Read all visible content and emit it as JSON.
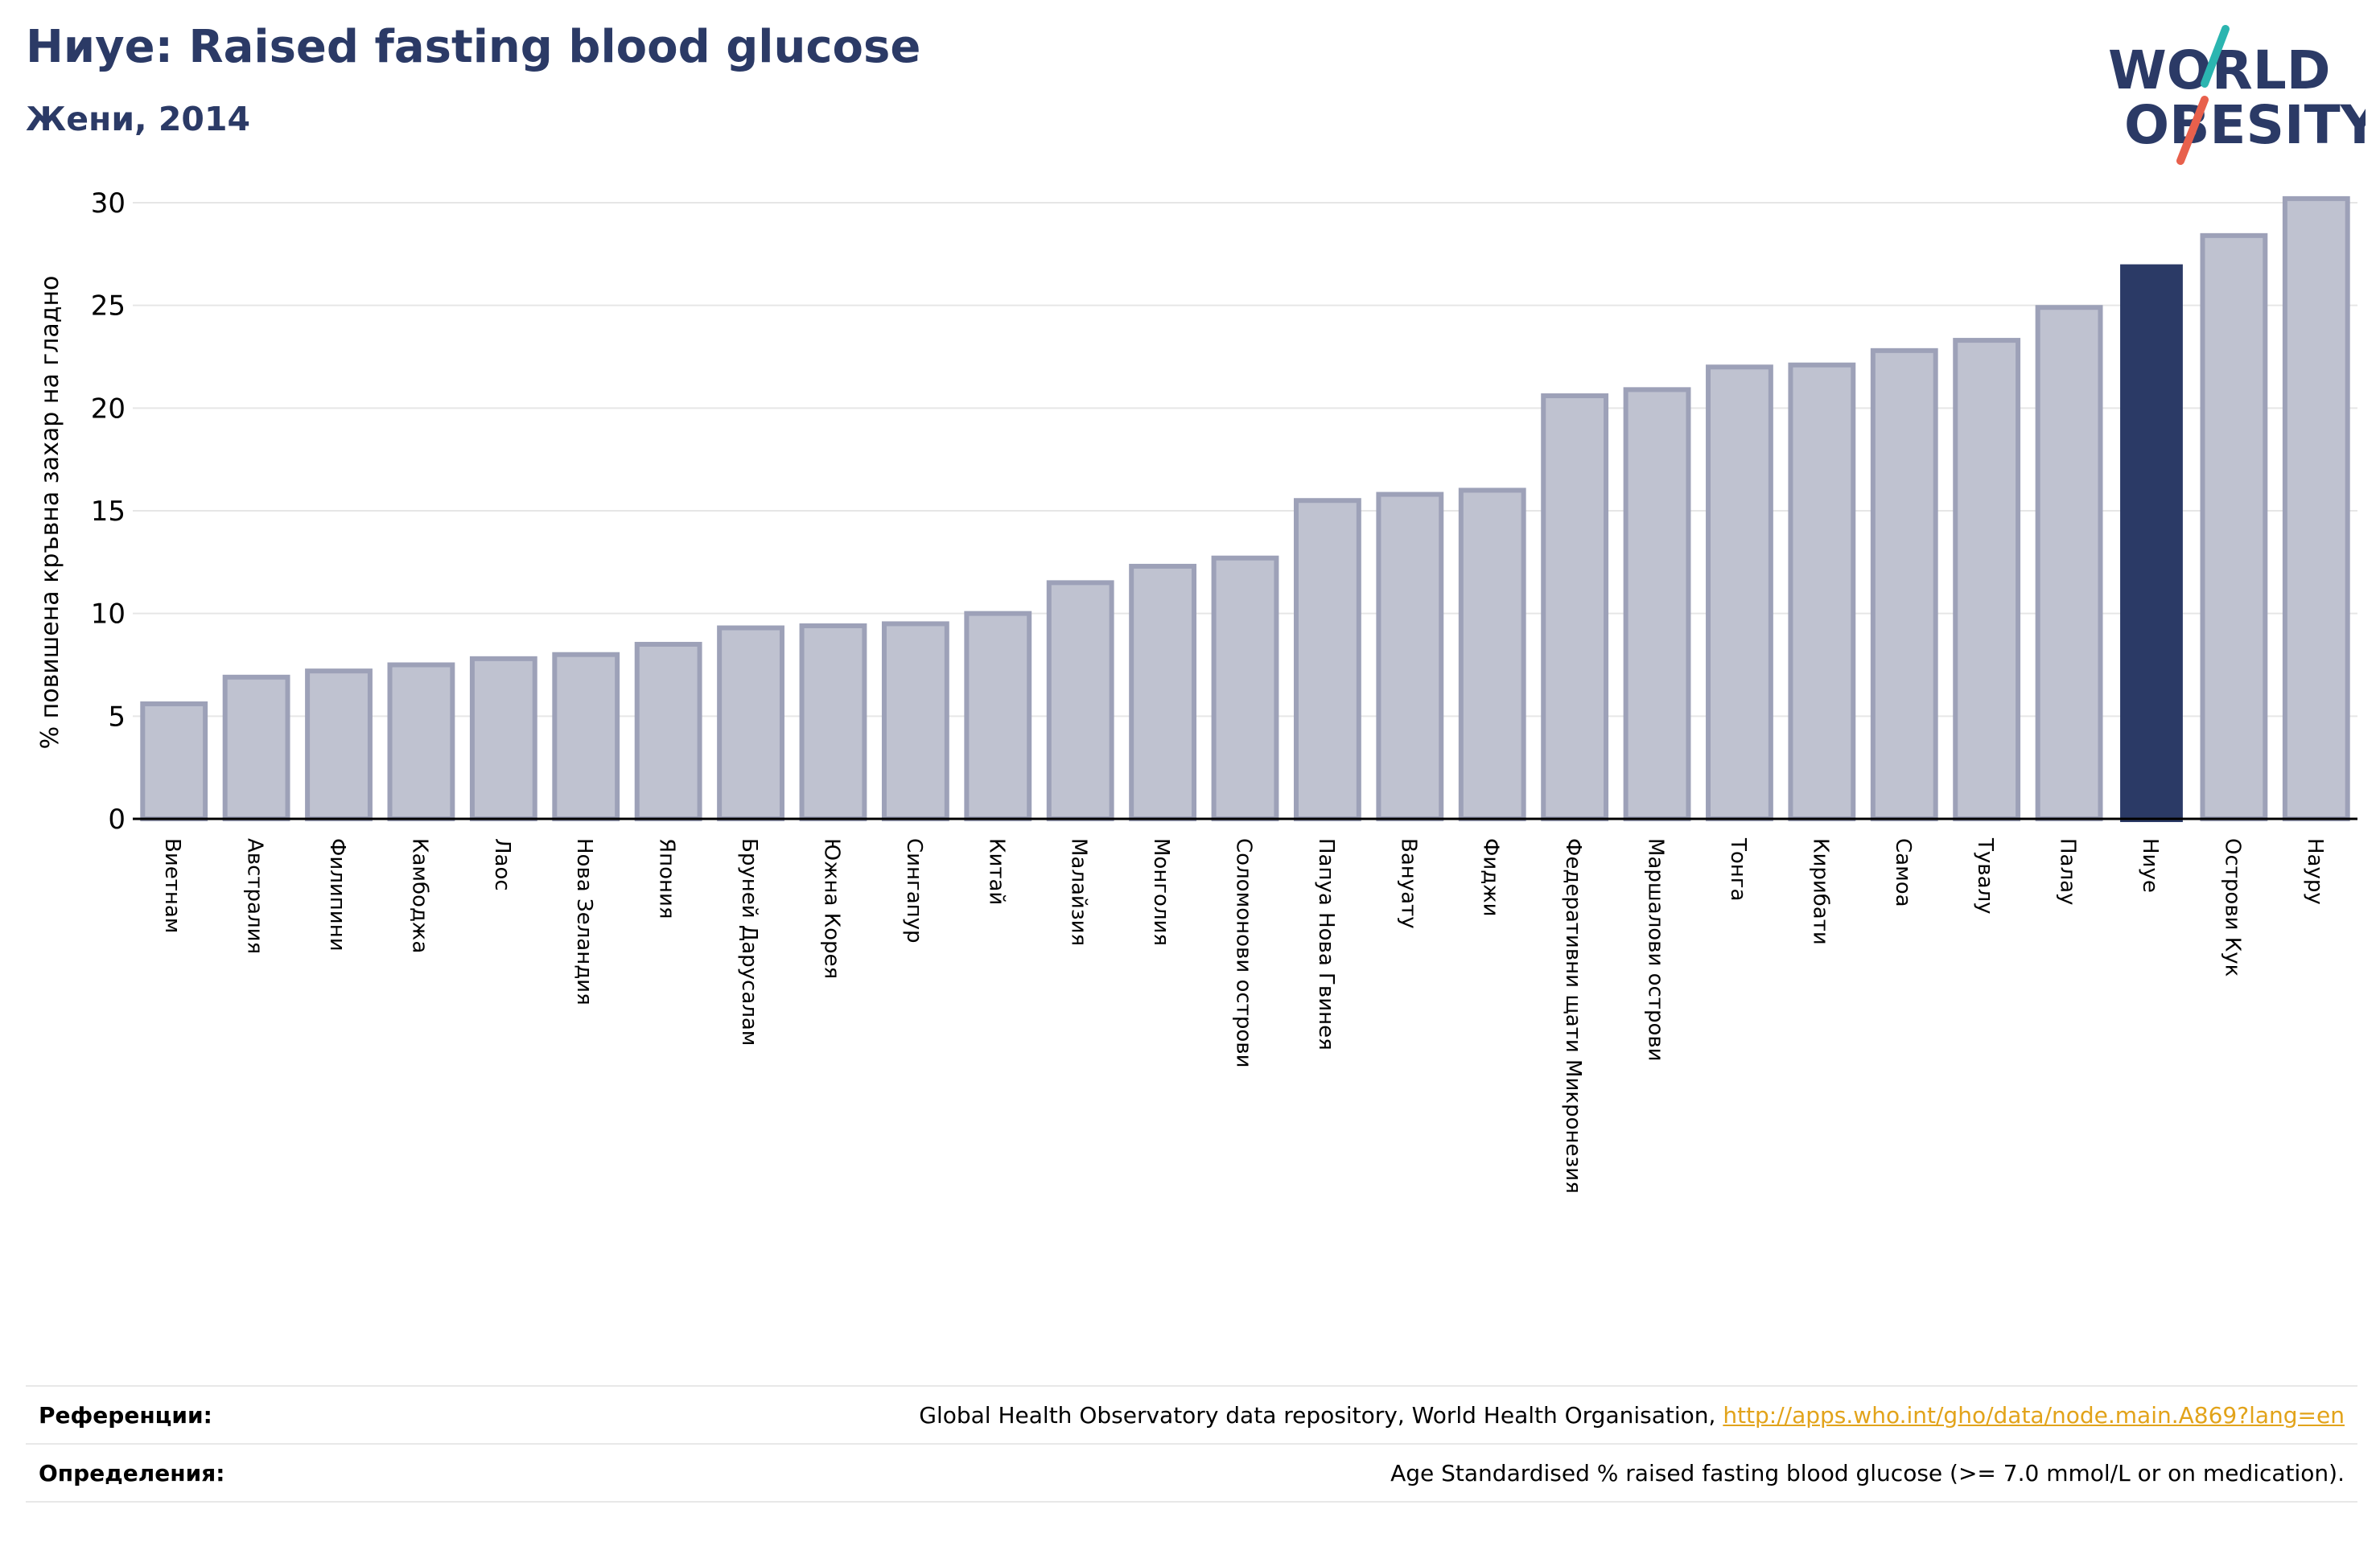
{
  "header": {
    "title": "Ниуе: Raised fasting blood glucose",
    "subtitle": "Жени, 2014"
  },
  "logo": {
    "line1": "WORLD",
    "line2": "OBESITY",
    "color_text": "#2b3a66",
    "color_slash_top": "#2bb5b0",
    "color_slash_bottom": "#e8604c"
  },
  "colors": {
    "bar": "#bfc2d0",
    "bar_edge": "#9da1b8",
    "highlight": "#2b3a66",
    "grid": "#e6e6e6",
    "axis": "#000000",
    "link": "#e2a31a"
  },
  "chart_data": {
    "type": "bar",
    "title": "Ниуе: Raised fasting blood glucose",
    "subtitle": "Жени, 2014",
    "xlabel": "",
    "ylabel": "% повишена кръвна захар на гладно",
    "ylim": [
      0,
      30
    ],
    "yticks": [
      0,
      5,
      10,
      15,
      20,
      25,
      30
    ],
    "grid": true,
    "highlight": "Ниуе",
    "categories": [
      "Виетнам",
      "Австралия",
      "Филипини",
      "Камбоджа",
      "Лаос",
      "Нова Зеландия",
      "Япония",
      "Бруней Дарусалам",
      "Южна Корея",
      "Сингапур",
      "Китай",
      "Малайзия",
      "Монголия",
      "Соломонови острови",
      "Папуа Нова Гвинея",
      "Вануату",
      "Фиджи",
      "Федеративни щати Микронезия",
      "Маршалови острови",
      "Тонга",
      "Кирибати",
      "Самоа",
      "Тувалу",
      "Палау",
      "Ниуе",
      "Острови Кук",
      "Науру"
    ],
    "values": [
      5.6,
      6.9,
      7.2,
      7.5,
      7.8,
      8.0,
      8.5,
      9.3,
      9.4,
      9.5,
      10.0,
      11.5,
      12.3,
      12.7,
      15.5,
      15.8,
      16.0,
      20.6,
      20.9,
      22.0,
      22.1,
      22.8,
      23.3,
      24.9,
      27.0,
      28.4,
      30.2
    ]
  },
  "footer": {
    "references_label": "Референции:",
    "references_text": "Global Health Observatory data repository, World Health Organisation, ",
    "references_link": "http://apps.who.int/gho/data/node.main.A869?lang=en",
    "definitions_label": "Определения:",
    "definitions_text": "Age Standardised % raised fasting blood glucose (>= 7.0 mmol/L or on medication)."
  }
}
